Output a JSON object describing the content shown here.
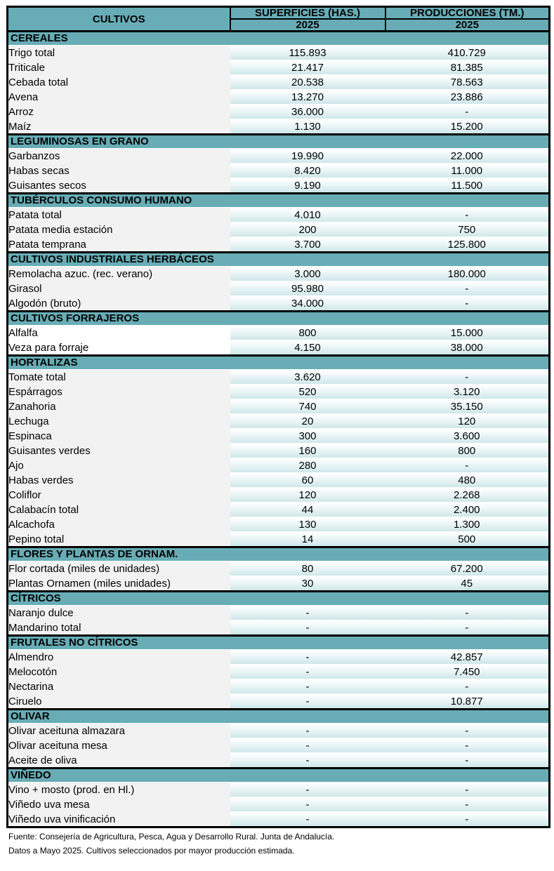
{
  "header": {
    "col_crop": "CULTIVOS",
    "col_area": "SUPERFICIES (HAS.)",
    "col_prod": "PRODUCCIONES (TM.)",
    "year_area": "2025",
    "year_prod": "2025"
  },
  "colors": {
    "header_bg": "#68adb6",
    "label_bg": "#f2f2f2",
    "value_bg": "#d6ecee"
  },
  "sections": [
    {
      "title": "CEREALES",
      "rows": [
        {
          "crop": "Trigo total",
          "area": "115.893",
          "prod": "410.729"
        },
        {
          "crop": "Triticale",
          "area": "21.417",
          "prod": "81.385"
        },
        {
          "crop": "Cebada total",
          "area": "20.538",
          "prod": "78.563"
        },
        {
          "crop": "Avena",
          "area": "13.270",
          "prod": "23.886"
        },
        {
          "crop": "Arroz",
          "area": "36.000",
          "prod": "-"
        },
        {
          "crop": "Maíz",
          "area": "1.130",
          "prod": "15.200"
        }
      ]
    },
    {
      "title": "LEGUMINOSAS EN GRANO",
      "rows": [
        {
          "crop": "Garbanzos",
          "area": "19.990",
          "prod": "22.000"
        },
        {
          "crop": "Habas secas",
          "area": "8.420",
          "prod": "11.000"
        },
        {
          "crop": "Guisantes secos",
          "area": "9.190",
          "prod": "11.500"
        }
      ]
    },
    {
      "title": "TUBÉRCULOS CONSUMO HUMANO",
      "rows": [
        {
          "crop": "Patata total",
          "area": "4.010",
          "prod": "-"
        },
        {
          "crop": "Patata media estación",
          "area": "200",
          "prod": "750"
        },
        {
          "crop": "Patata temprana",
          "area": "3.700",
          "prod": "125.800"
        }
      ]
    },
    {
      "title": "CULTIVOS INDUSTRIALES HERBÁCEOS",
      "rows": [
        {
          "crop": "Remolacha azuc. (rec. verano)",
          "area": "3.000",
          "prod": "180.000"
        },
        {
          "crop": "Girasol",
          "area": "95.980",
          "prod": "-"
        },
        {
          "crop": "Algodón (bruto)",
          "area": "34.000",
          "prod": "-"
        }
      ]
    },
    {
      "title": "CULTIVOS FORRAJEROS",
      "white": true,
      "rows": [
        {
          "crop": "Alfalfa",
          "area": "800",
          "prod": "15.000"
        },
        {
          "crop": "Veza para forraje",
          "area": "4.150",
          "prod": "38.000"
        }
      ]
    },
    {
      "title": "HORTALIZAS",
      "rows": [
        {
          "crop": "Tomate total",
          "area": "3.620",
          "prod": "-"
        },
        {
          "crop": "Espárragos",
          "area": "520",
          "prod": "3.120"
        },
        {
          "crop": "Zanahoria",
          "area": "740",
          "prod": "35.150"
        },
        {
          "crop": "Lechuga",
          "area": "20",
          "prod": "120"
        },
        {
          "crop": "Espinaca",
          "area": "300",
          "prod": "3.600"
        },
        {
          "crop": "Guisantes verdes",
          "area": "160",
          "prod": "800"
        },
        {
          "crop": "Ajo",
          "area": "280",
          "prod": "-"
        },
        {
          "crop": "Habas verdes",
          "area": "60",
          "prod": "480"
        },
        {
          "crop": "Coliflor",
          "area": "120",
          "prod": "2.268"
        },
        {
          "crop": "Calabacín total",
          "area": "44",
          "prod": "2.400"
        },
        {
          "crop": "Alcachofa",
          "area": "130",
          "prod": "1.300"
        },
        {
          "crop": "Pepino total",
          "area": "14",
          "prod": "500"
        }
      ]
    },
    {
      "title": "FLORES Y PLANTAS DE ORNAM.",
      "rows": [
        {
          "crop": "Flor cortada (miles de unidades)",
          "area": "80",
          "prod": "67.200"
        },
        {
          "crop": "Plantas Ornamen (miles unidades)",
          "area": "30",
          "prod": "45"
        }
      ]
    },
    {
      "title": "CÍTRICOS",
      "rows": [
        {
          "crop": "Naranjo dulce",
          "area": "-",
          "prod": "-"
        },
        {
          "crop": "Mandarino total",
          "area": "-",
          "prod": "-"
        }
      ]
    },
    {
      "title": "FRUTALES NO CÍTRICOS",
      "rows": [
        {
          "crop": "Almendro",
          "area": "-",
          "prod": "42.857"
        },
        {
          "crop": "Melocotón",
          "area": "-",
          "prod": "7.450"
        },
        {
          "crop": "Nectarina",
          "area": "-",
          "prod": "-"
        },
        {
          "crop": "Ciruelo",
          "area": "-",
          "prod": "10.877"
        }
      ]
    },
    {
      "title": "OLIVAR",
      "rows": [
        {
          "crop": "Olivar aceituna almazara",
          "area": "-",
          "prod": "-"
        },
        {
          "crop": "Olivar aceituna mesa",
          "area": "-",
          "prod": "-"
        },
        {
          "crop": "Aceite de oliva",
          "area": "-",
          "prod": "-"
        }
      ]
    },
    {
      "title": "VIÑEDO",
      "rows": [
        {
          "crop": "Vino + mosto (prod. en Hl.)",
          "area": "-",
          "prod": "-"
        },
        {
          "crop": "Viñedo uva mesa",
          "area": "-",
          "prod": "-"
        },
        {
          "crop": "Viñedo uva vinificación",
          "area": "-",
          "prod": "-"
        }
      ]
    }
  ],
  "footer": {
    "source": "Fuente: Consejería de Agricultura, Pesca, Agua y Desarrollo Rural. Junta de Andalucía.",
    "note": "Datos a Mayo 2025. Cultivos seleccionados por mayor producción estimada."
  }
}
